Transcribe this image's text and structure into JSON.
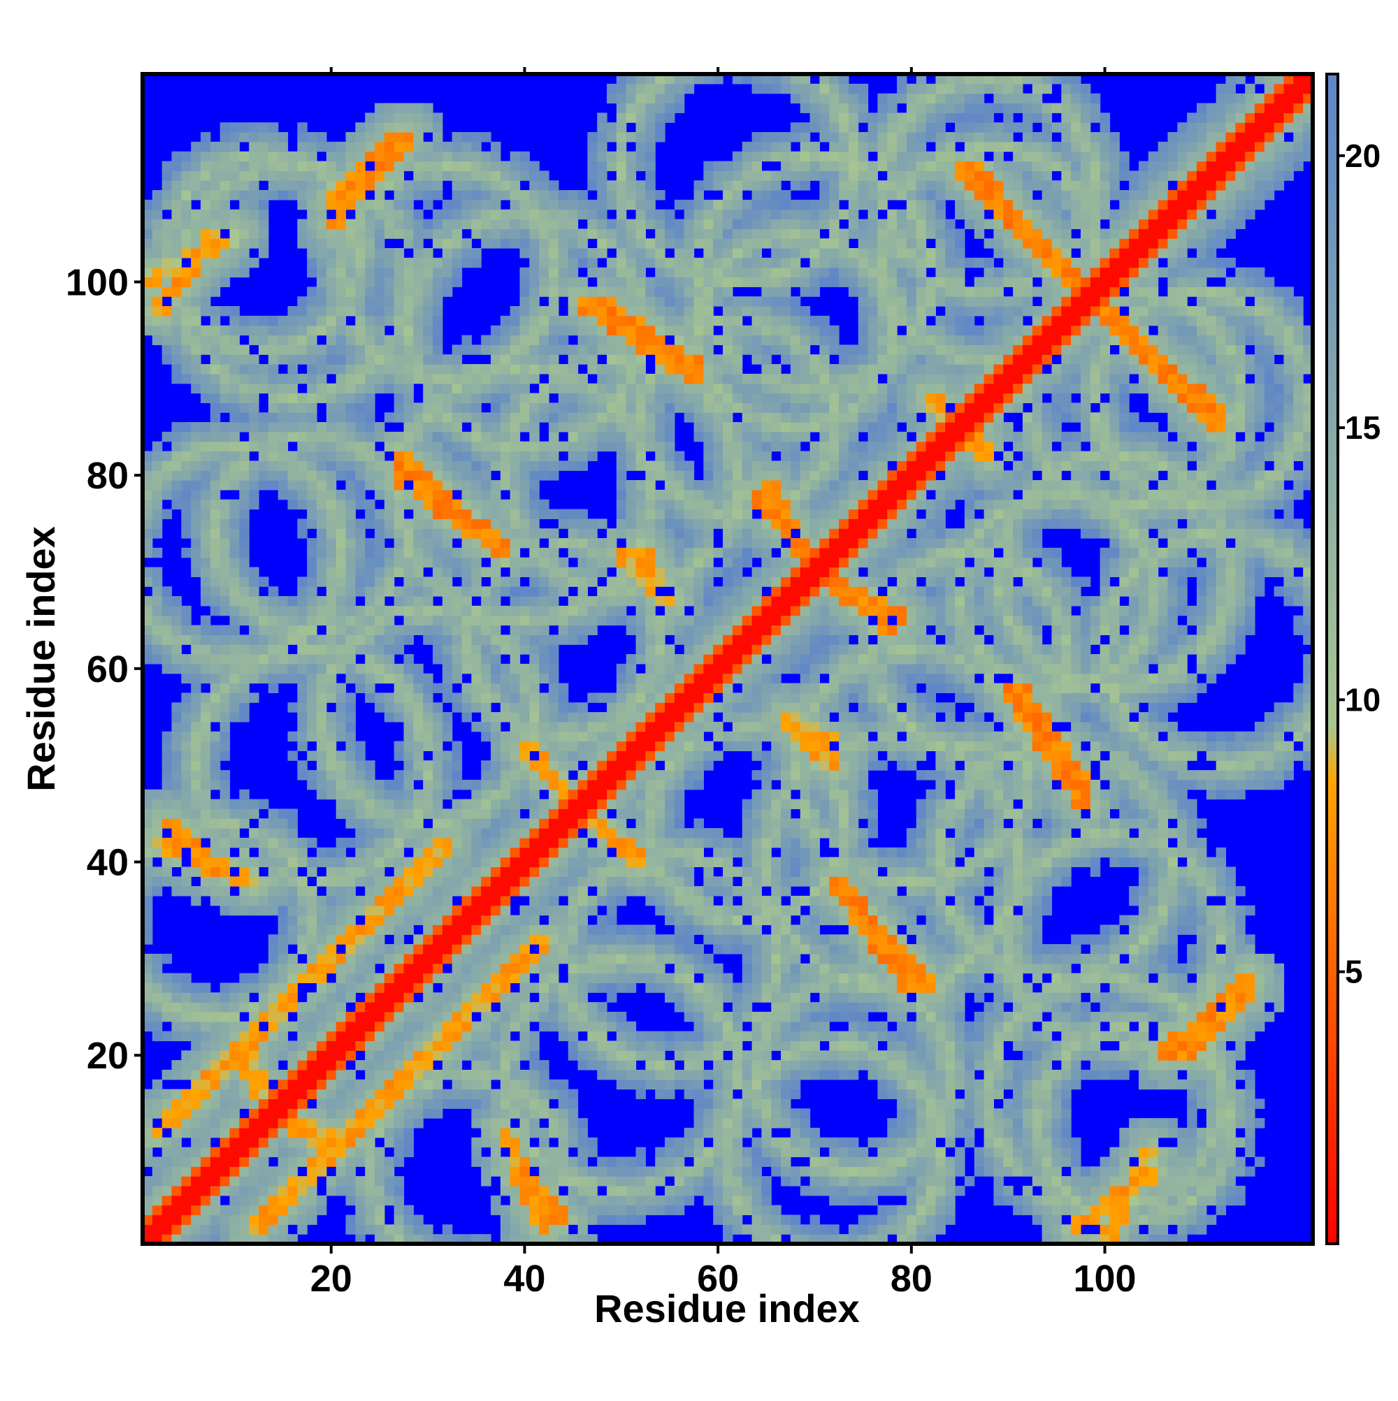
{
  "chart_data": {
    "type": "heatmap",
    "title": "",
    "xlabel": "Residue index",
    "ylabel": "Residue index",
    "xlim": [
      1,
      121
    ],
    "ylim": [
      1,
      121
    ],
    "x_ticks": [
      20,
      40,
      60,
      80,
      100
    ],
    "y_ticks": [
      20,
      40,
      60,
      80,
      100
    ],
    "colorbar": {
      "ticks": [
        5,
        10,
        15,
        20
      ],
      "range": [
        0,
        21.5
      ],
      "colors": [
        {
          "value": 0,
          "color": "#ff0000"
        },
        {
          "value": 8.5,
          "color": "#ffa500"
        },
        {
          "value": 9.5,
          "color": "#a8c690"
        },
        {
          "value": 21.5,
          "color": "#5f86c8"
        },
        {
          "value": 21.5,
          "color": "#0000ff"
        }
      ],
      "background_color": "#0000ff",
      "background_meaning": "distance above colorbar maximum"
    },
    "contact_bands": [
      {
        "id": "b01",
        "p1": [
          12,
          2
        ],
        "p2": [
          42,
          32
        ],
        "intensity": 0.55
      },
      {
        "id": "b02",
        "p1": [
          2,
          42
        ],
        "p2": [
          12,
          38
        ],
        "intensity": 0.55
      },
      {
        "id": "b03",
        "p1": [
          20,
          106
        ],
        "p2": [
          28,
          115
        ],
        "intensity": 0.8
      },
      {
        "id": "b04",
        "p1": [
          1,
          100
        ],
        "p2": [
          10,
          105
        ],
        "intensity": 0.4
      },
      {
        "id": "b05",
        "p1": [
          46,
          98
        ],
        "p2": [
          58,
          90
        ],
        "intensity": 0.9
      },
      {
        "id": "b06",
        "p1": [
          27,
          82
        ],
        "p2": [
          38,
          72
        ],
        "intensity": 0.85
      },
      {
        "id": "b07",
        "p1": [
          39,
          8
        ],
        "p2": [
          44,
          3
        ],
        "intensity": 0.7
      },
      {
        "id": "b08",
        "p1": [
          72,
          38
        ],
        "p2": [
          80,
          27
        ],
        "intensity": 0.85
      },
      {
        "id": "b09",
        "p1": [
          85,
          112
        ],
        "p2": [
          97,
          100
        ],
        "intensity": 0.9
      },
      {
        "id": "b10",
        "p1": [
          101,
          96
        ],
        "p2": [
          112,
          86
        ],
        "intensity": 0.9
      },
      {
        "id": "b11",
        "p1": [
          91,
          58
        ],
        "p2": [
          98,
          48
        ],
        "intensity": 0.85
      },
      {
        "id": "b12",
        "p1": [
          108,
          20
        ],
        "p2": [
          115,
          27
        ],
        "intensity": 0.75
      },
      {
        "id": "b13",
        "p1": [
          65,
          79
        ],
        "p2": [
          69,
          72
        ],
        "intensity": 0.8
      },
      {
        "id": "b14",
        "p1": [
          72,
          69
        ],
        "p2": [
          78,
          64
        ],
        "intensity": 0.8
      },
      {
        "id": "b15",
        "p1": [
          45,
          46
        ],
        "p2": [
          52,
          40
        ],
        "intensity": 0.6
      },
      {
        "id": "b16",
        "p1": [
          67,
          55
        ],
        "p2": [
          72,
          52
        ],
        "intensity": 0.5
      },
      {
        "id": "b17",
        "p1": [
          50,
          72
        ],
        "p2": [
          54,
          68
        ],
        "intensity": 0.5
      },
      {
        "id": "b18",
        "p1": [
          85,
          85
        ],
        "p2": [
          88,
          82
        ],
        "intensity": 0.5
      },
      {
        "id": "b19",
        "p1": [
          14,
          14
        ],
        "p2": [
          20,
          11
        ],
        "intensity": 0.5
      },
      {
        "id": "b20",
        "p1": [
          97,
          2
        ],
        "p2": [
          105,
          8
        ],
        "intensity": 0.6
      }
    ],
    "rings": [
      {
        "id": "r01",
        "center": [
          8,
          34
        ],
        "radius": 10
      },
      {
        "id": "r02",
        "center": [
          10,
          72
        ],
        "radius": 11
      },
      {
        "id": "r03",
        "center": [
          13,
          103
        ],
        "radius": 10
      },
      {
        "id": "r04",
        "center": [
          32,
          101
        ],
        "radius": 11
      },
      {
        "id": "r05",
        "center": [
          40,
          78
        ],
        "radius": 13
      },
      {
        "id": "r06",
        "center": [
          30,
          55
        ],
        "radius": 11
      },
      {
        "id": "r07",
        "center": [
          50,
          18
        ],
        "radius": 12
      },
      {
        "id": "r08",
        "center": [
          74,
          18
        ],
        "radius": 10
      },
      {
        "id": "r09",
        "center": [
          80,
          50
        ],
        "radius": 12
      },
      {
        "id": "r10",
        "center": [
          95,
          40
        ],
        "radius": 12
      },
      {
        "id": "r11",
        "center": [
          100,
          16
        ],
        "radius": 12
      },
      {
        "id": "r12",
        "center": [
          70,
          101
        ],
        "radius": 12
      },
      {
        "id": "r13",
        "center": [
          88,
          103
        ],
        "radius": 11
      },
      {
        "id": "r14",
        "center": [
          110,
          88
        ],
        "radius": 11
      },
      {
        "id": "r15",
        "center": [
          112,
          62
        ],
        "radius": 12
      },
      {
        "id": "r16",
        "center": [
          63,
          44
        ],
        "radius": 10
      },
      {
        "id": "r17",
        "center": [
          62,
          86
        ],
        "radius": 10
      },
      {
        "id": "r18",
        "center": [
          95,
          68
        ],
        "radius": 10
      }
    ]
  }
}
